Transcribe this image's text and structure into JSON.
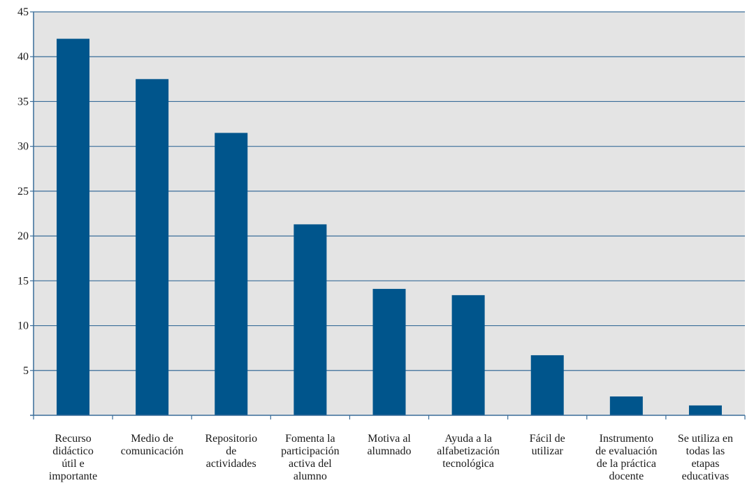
{
  "chart_data": {
    "type": "bar",
    "categories": [
      [
        "Recurso",
        "didáctico",
        "útil e",
        "importante"
      ],
      [
        "Medio de",
        "comunicación"
      ],
      [
        "Repositorio",
        "de",
        "actividades"
      ],
      [
        "Fomenta la",
        "participación",
        "activa del",
        "alumno"
      ],
      [
        "Motiva al",
        "alumnado"
      ],
      [
        "Ayuda a la",
        "alfabetización",
        "tecnológica"
      ],
      [
        "Fácil de",
        "utilizar"
      ],
      [
        "Instrumento",
        "de evaluación",
        "de la práctica",
        "docente"
      ],
      [
        "Se utiliza en",
        "todas las",
        "etapas",
        "educativas"
      ]
    ],
    "values": [
      42,
      37.5,
      31.5,
      21.3,
      14.1,
      13.4,
      6.7,
      2.1,
      1.1
    ],
    "yticks": [
      5,
      10,
      15,
      20,
      25,
      30,
      35,
      40,
      45
    ],
    "ylim": [
      0,
      45
    ],
    "grid": true,
    "title": "",
    "xlabel": "",
    "ylabel": "",
    "colors": {
      "bar": "#00558c",
      "plot_bg": "#e4e4e4",
      "grid": "#3a6d99",
      "axis": "#3a6d99"
    }
  }
}
